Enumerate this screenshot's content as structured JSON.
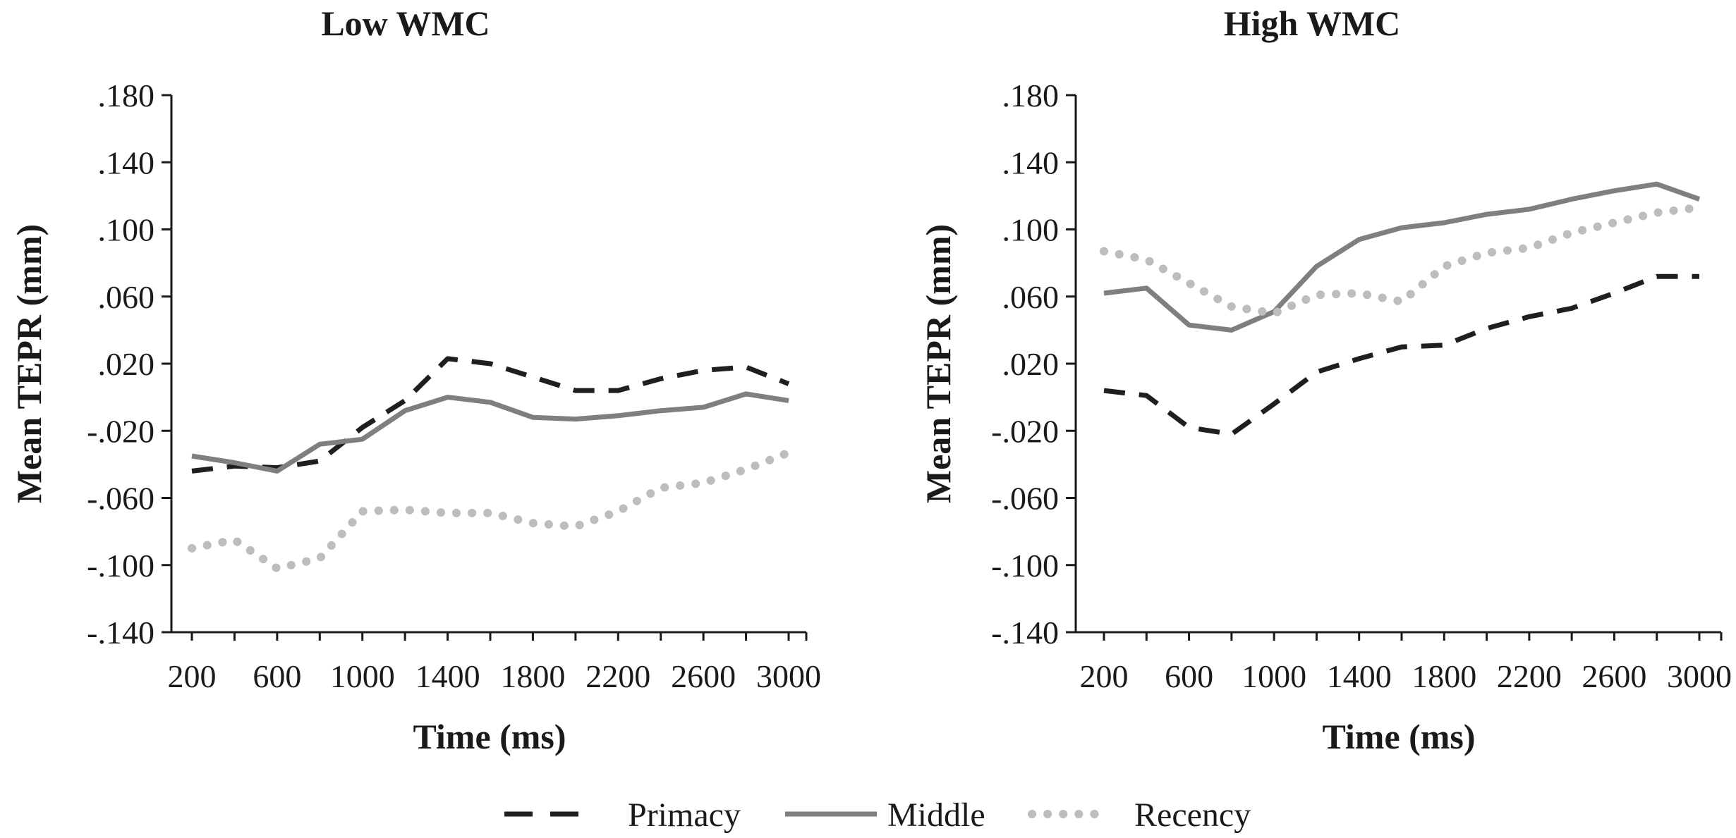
{
  "chart_data": [
    {
      "type": "line",
      "title": "Low WMC",
      "xlabel": "Time (ms)",
      "ylabel": "Mean TEPR (mm)",
      "x": [
        200,
        400,
        600,
        800,
        1000,
        1200,
        1400,
        1600,
        1800,
        2000,
        2200,
        2400,
        2600,
        2800,
        3000
      ],
      "x_tick_labels": [
        "200",
        "600",
        "1000",
        "1400",
        "1800",
        "2200",
        "2600",
        "3000"
      ],
      "y_tick_labels": [
        ".180",
        ".140",
        ".100",
        ".060",
        ".020",
        "-.020",
        "-.060",
        "-.100",
        "-.140"
      ],
      "ylim": [
        -0.14,
        0.18
      ],
      "grid": false,
      "series": [
        {
          "name": "Primacy",
          "style": "dashed",
          "color": "#1f1f1f",
          "values": [
            -0.044,
            -0.041,
            -0.042,
            -0.038,
            -0.018,
            -0.002,
            0.023,
            0.02,
            0.012,
            0.004,
            0.004,
            0.011,
            0.016,
            0.018,
            0.008
          ]
        },
        {
          "name": "Middle",
          "style": "solid",
          "color": "#7f7f7f",
          "values": [
            -0.035,
            -0.039,
            -0.044,
            -0.028,
            -0.025,
            -0.008,
            0.0,
            -0.003,
            -0.012,
            -0.013,
            -0.011,
            -0.008,
            -0.006,
            0.002,
            -0.002
          ]
        },
        {
          "name": "Recency",
          "style": "dotted",
          "color": "#bdbdbd",
          "values": [
            -0.09,
            -0.085,
            -0.102,
            -0.096,
            -0.068,
            -0.067,
            -0.069,
            -0.069,
            -0.075,
            -0.077,
            -0.068,
            -0.054,
            -0.051,
            -0.043,
            -0.033
          ]
        }
      ]
    },
    {
      "type": "line",
      "title": "High WMC",
      "xlabel": "Time (ms)",
      "ylabel": "Mean TEPR (mm)",
      "x": [
        200,
        400,
        600,
        800,
        1000,
        1200,
        1400,
        1600,
        1800,
        2000,
        2200,
        2400,
        2600,
        2800,
        3000
      ],
      "x_tick_labels": [
        "200",
        "600",
        "1000",
        "1400",
        "1800",
        "2200",
        "2600",
        "3000"
      ],
      "y_tick_labels": [
        ".180",
        ".140",
        ".100",
        ".060",
        ".020",
        "-.020",
        "-.060",
        "-.100",
        "-.140"
      ],
      "ylim": [
        -0.14,
        0.18
      ],
      "grid": false,
      "series": [
        {
          "name": "Primacy",
          "style": "dashed",
          "color": "#1f1f1f",
          "values": [
            0.004,
            0.001,
            -0.018,
            -0.022,
            -0.004,
            0.015,
            0.023,
            0.03,
            0.031,
            0.041,
            0.048,
            0.053,
            0.062,
            0.072,
            0.072
          ]
        },
        {
          "name": "Middle",
          "style": "solid",
          "color": "#7f7f7f",
          "values": [
            0.062,
            0.065,
            0.043,
            0.04,
            0.051,
            0.078,
            0.094,
            0.101,
            0.104,
            0.109,
            0.112,
            0.118,
            0.123,
            0.127,
            0.118
          ]
        },
        {
          "name": "Recency",
          "style": "dotted",
          "color": "#bdbdbd",
          "values": [
            0.087,
            0.082,
            0.068,
            0.054,
            0.05,
            0.061,
            0.062,
            0.057,
            0.078,
            0.086,
            0.089,
            0.098,
            0.104,
            0.11,
            0.113
          ]
        }
      ]
    }
  ],
  "legend": {
    "position": "bottom-center",
    "items": [
      {
        "label": "Primacy",
        "style": "dashed",
        "color": "#1f1f1f"
      },
      {
        "label": "Middle",
        "style": "solid",
        "color": "#7f7f7f"
      },
      {
        "label": "Recency",
        "style": "dotted",
        "color": "#bdbdbd"
      }
    ]
  }
}
